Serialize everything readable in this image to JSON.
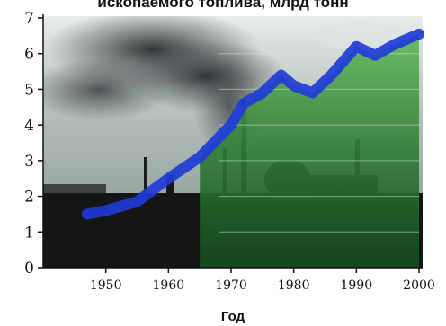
{
  "chart_data": {
    "type": "line",
    "title": "ископаемого топлива, млрд тонн",
    "xlabel": "Год",
    "ylabel": "",
    "xlim": [
      1940,
      2000
    ],
    "ylim": [
      0,
      7
    ],
    "x_ticks": [
      "1950",
      "1960",
      "1970",
      "1980",
      "1990",
      "2000"
    ],
    "y_ticks": [
      "0",
      "1",
      "2",
      "3",
      "4",
      "5",
      "6",
      "7"
    ],
    "series": [
      {
        "color": "#1f3bd6",
        "x": [
          1947,
          1950,
          1955,
          1960,
          1965,
          1970,
          1972,
          1975,
          1978,
          1980,
          1983,
          1986,
          1990,
          1993,
          1996,
          2000
        ],
        "y": [
          1.5,
          1.6,
          1.85,
          2.5,
          3.1,
          4.0,
          4.6,
          4.9,
          5.4,
          5.1,
          4.9,
          5.4,
          6.2,
          5.95,
          6.25,
          6.55
        ]
      }
    ]
  }
}
